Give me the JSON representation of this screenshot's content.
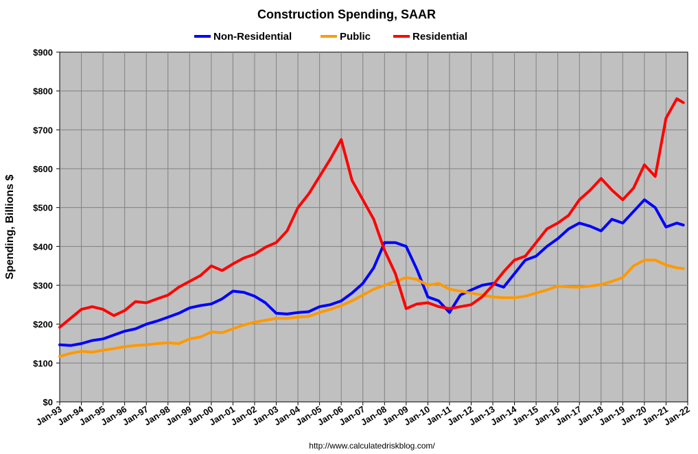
{
  "chart_data": {
    "type": "line",
    "title": "Construction Spending, SAAR",
    "xlabel": "",
    "ylabel": "Spending, Billions $",
    "source": "http://www.calculatedriskblog.com/",
    "ylim": [
      0,
      900
    ],
    "yticks": [
      0,
      100,
      200,
      300,
      400,
      500,
      600,
      700,
      800,
      900
    ],
    "ytick_labels": [
      "$0",
      "$100",
      "$200",
      "$300",
      "$400",
      "$500",
      "$600",
      "$700",
      "$800",
      "$900"
    ],
    "xlim": [
      1993,
      2022
    ],
    "xticks": [
      1993,
      1994,
      1995,
      1996,
      1997,
      1998,
      1999,
      2000,
      2001,
      2002,
      2003,
      2004,
      2005,
      2006,
      2007,
      2008,
      2009,
      2010,
      2011,
      2012,
      2013,
      2014,
      2015,
      2016,
      2017,
      2018,
      2019,
      2020,
      2021,
      2022
    ],
    "xtick_labels": [
      "Jan-93",
      "Jan-94",
      "Jan-95",
      "Jan-96",
      "Jan-97",
      "Jan-98",
      "Jan-99",
      "Jan-00",
      "Jan-01",
      "Jan-02",
      "Jan-03",
      "Jan-04",
      "Jan-05",
      "Jan-06",
      "Jan-07",
      "Jan-08",
      "Jan-09",
      "Jan-10",
      "Jan-11",
      "Jan-12",
      "Jan-13",
      "Jan-14",
      "Jan-15",
      "Jan-16",
      "Jan-17",
      "Jan-18",
      "Jan-19",
      "Jan-20",
      "Jan-21",
      "Jan-22"
    ],
    "grid": true,
    "legend_position": "top-center",
    "series": [
      {
        "name": "Non-Residential",
        "color": "#0000ff",
        "x": [
          1993.0,
          1993.5,
          1994.0,
          1994.5,
          1995.0,
          1995.5,
          1996.0,
          1996.5,
          1997.0,
          1997.5,
          1998.0,
          1998.5,
          1999.0,
          1999.5,
          2000.0,
          2000.5,
          2001.0,
          2001.5,
          2002.0,
          2002.5,
          2003.0,
          2003.5,
          2004.0,
          2004.5,
          2005.0,
          2005.5,
          2006.0,
          2006.5,
          2007.0,
          2007.5,
          2008.0,
          2008.5,
          2009.0,
          2009.5,
          2010.0,
          2010.5,
          2011.0,
          2011.5,
          2012.0,
          2012.5,
          2013.0,
          2013.5,
          2014.0,
          2014.5,
          2015.0,
          2015.5,
          2016.0,
          2016.5,
          2017.0,
          2017.5,
          2018.0,
          2018.5,
          2019.0,
          2019.5,
          2020.0,
          2020.5,
          2021.0,
          2021.5,
          2021.8
        ],
        "values": [
          147,
          145,
          150,
          158,
          162,
          172,
          182,
          188,
          200,
          208,
          218,
          228,
          242,
          248,
          252,
          265,
          285,
          282,
          272,
          255,
          228,
          226,
          230,
          232,
          245,
          250,
          260,
          280,
          305,
          345,
          410,
          410,
          400,
          340,
          270,
          260,
          230,
          275,
          288,
          300,
          305,
          295,
          330,
          365,
          375,
          400,
          420,
          445,
          460,
          452,
          440,
          470,
          460,
          490,
          520,
          500,
          450,
          460,
          455
        ]
      },
      {
        "name": "Public",
        "color": "#ff9900",
        "x": [
          1993.0,
          1993.5,
          1994.0,
          1994.5,
          1995.0,
          1995.5,
          1996.0,
          1996.5,
          1997.0,
          1997.5,
          1998.0,
          1998.5,
          1999.0,
          1999.5,
          2000.0,
          2000.5,
          2001.0,
          2001.5,
          2002.0,
          2002.5,
          2003.0,
          2003.5,
          2004.0,
          2004.5,
          2005.0,
          2005.5,
          2006.0,
          2006.5,
          2007.0,
          2007.5,
          2008.0,
          2008.5,
          2009.0,
          2009.5,
          2010.0,
          2010.5,
          2011.0,
          2011.5,
          2012.0,
          2012.5,
          2013.0,
          2013.5,
          2014.0,
          2014.5,
          2015.0,
          2015.5,
          2016.0,
          2016.5,
          2017.0,
          2017.5,
          2018.0,
          2018.5,
          2019.0,
          2019.5,
          2020.0,
          2020.5,
          2021.0,
          2021.5,
          2021.8
        ],
        "values": [
          117,
          125,
          130,
          128,
          133,
          137,
          142,
          145,
          147,
          150,
          152,
          150,
          162,
          167,
          180,
          178,
          188,
          198,
          205,
          210,
          215,
          215,
          218,
          220,
          230,
          238,
          248,
          260,
          275,
          290,
          300,
          310,
          320,
          315,
          300,
          305,
          290,
          285,
          280,
          275,
          270,
          268,
          268,
          272,
          280,
          288,
          298,
          296,
          295,
          298,
          302,
          310,
          320,
          350,
          365,
          365,
          352,
          345,
          343
        ]
      },
      {
        "name": "Residential",
        "color": "#ff0000",
        "x": [
          1993.0,
          1993.5,
          1994.0,
          1994.5,
          1995.0,
          1995.5,
          1996.0,
          1996.5,
          1997.0,
          1997.5,
          1998.0,
          1998.5,
          1999.0,
          1999.5,
          2000.0,
          2000.5,
          2001.0,
          2001.5,
          2002.0,
          2002.5,
          2003.0,
          2003.5,
          2004.0,
          2004.5,
          2005.0,
          2005.5,
          2006.0,
          2006.5,
          2007.0,
          2007.5,
          2008.0,
          2008.5,
          2009.0,
          2009.5,
          2010.0,
          2010.5,
          2011.0,
          2011.5,
          2012.0,
          2012.5,
          2013.0,
          2013.5,
          2014.0,
          2014.5,
          2015.0,
          2015.5,
          2016.0,
          2016.5,
          2017.0,
          2017.5,
          2018.0,
          2018.5,
          2019.0,
          2019.5,
          2020.0,
          2020.5,
          2021.0,
          2021.5,
          2021.8
        ],
        "values": [
          192,
          215,
          238,
          245,
          238,
          222,
          235,
          258,
          255,
          265,
          275,
          295,
          310,
          325,
          350,
          338,
          355,
          370,
          380,
          398,
          410,
          440,
          500,
          535,
          580,
          625,
          675,
          570,
          520,
          470,
          390,
          330,
          240,
          252,
          255,
          245,
          240,
          245,
          250,
          270,
          300,
          335,
          365,
          375,
          410,
          445,
          460,
          480,
          520,
          545,
          575,
          545,
          520,
          550,
          610,
          580,
          730,
          780,
          770
        ]
      }
    ]
  }
}
